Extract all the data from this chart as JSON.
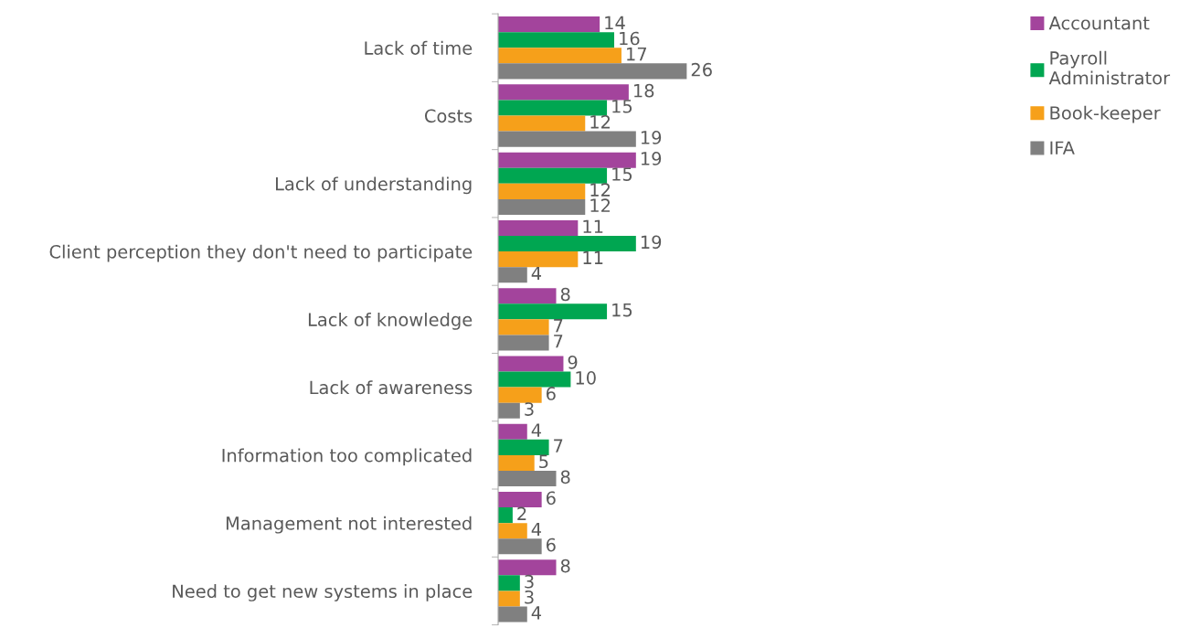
{
  "chart_data": {
    "type": "bar",
    "orientation": "horizontal",
    "data_labels": true,
    "legend": "top right",
    "grid": false,
    "categories": [
      "Lack of time",
      "Costs",
      "Lack of understanding",
      "Client perception they don't need to participate",
      "Lack of knowledge",
      "Lack of awareness",
      "Information too complicated",
      "Management not interested",
      "Need to get new systems in place"
    ],
    "series": [
      {
        "name": "Accountant",
        "color": "#a3449c",
        "values": [
          14,
          18,
          19,
          11,
          8,
          9,
          4,
          6,
          8
        ]
      },
      {
        "name": "Payroll Administrator",
        "color": "#00a651",
        "values": [
          16,
          15,
          15,
          19,
          15,
          10,
          7,
          2,
          3
        ]
      },
      {
        "name": "Book-keeper",
        "color": "#f6a01a",
        "values": [
          17,
          12,
          12,
          11,
          7,
          6,
          5,
          4,
          3
        ]
      },
      {
        "name": "IFA",
        "color": "#808080",
        "values": [
          26,
          19,
          12,
          4,
          7,
          3,
          8,
          6,
          4
        ]
      }
    ]
  }
}
